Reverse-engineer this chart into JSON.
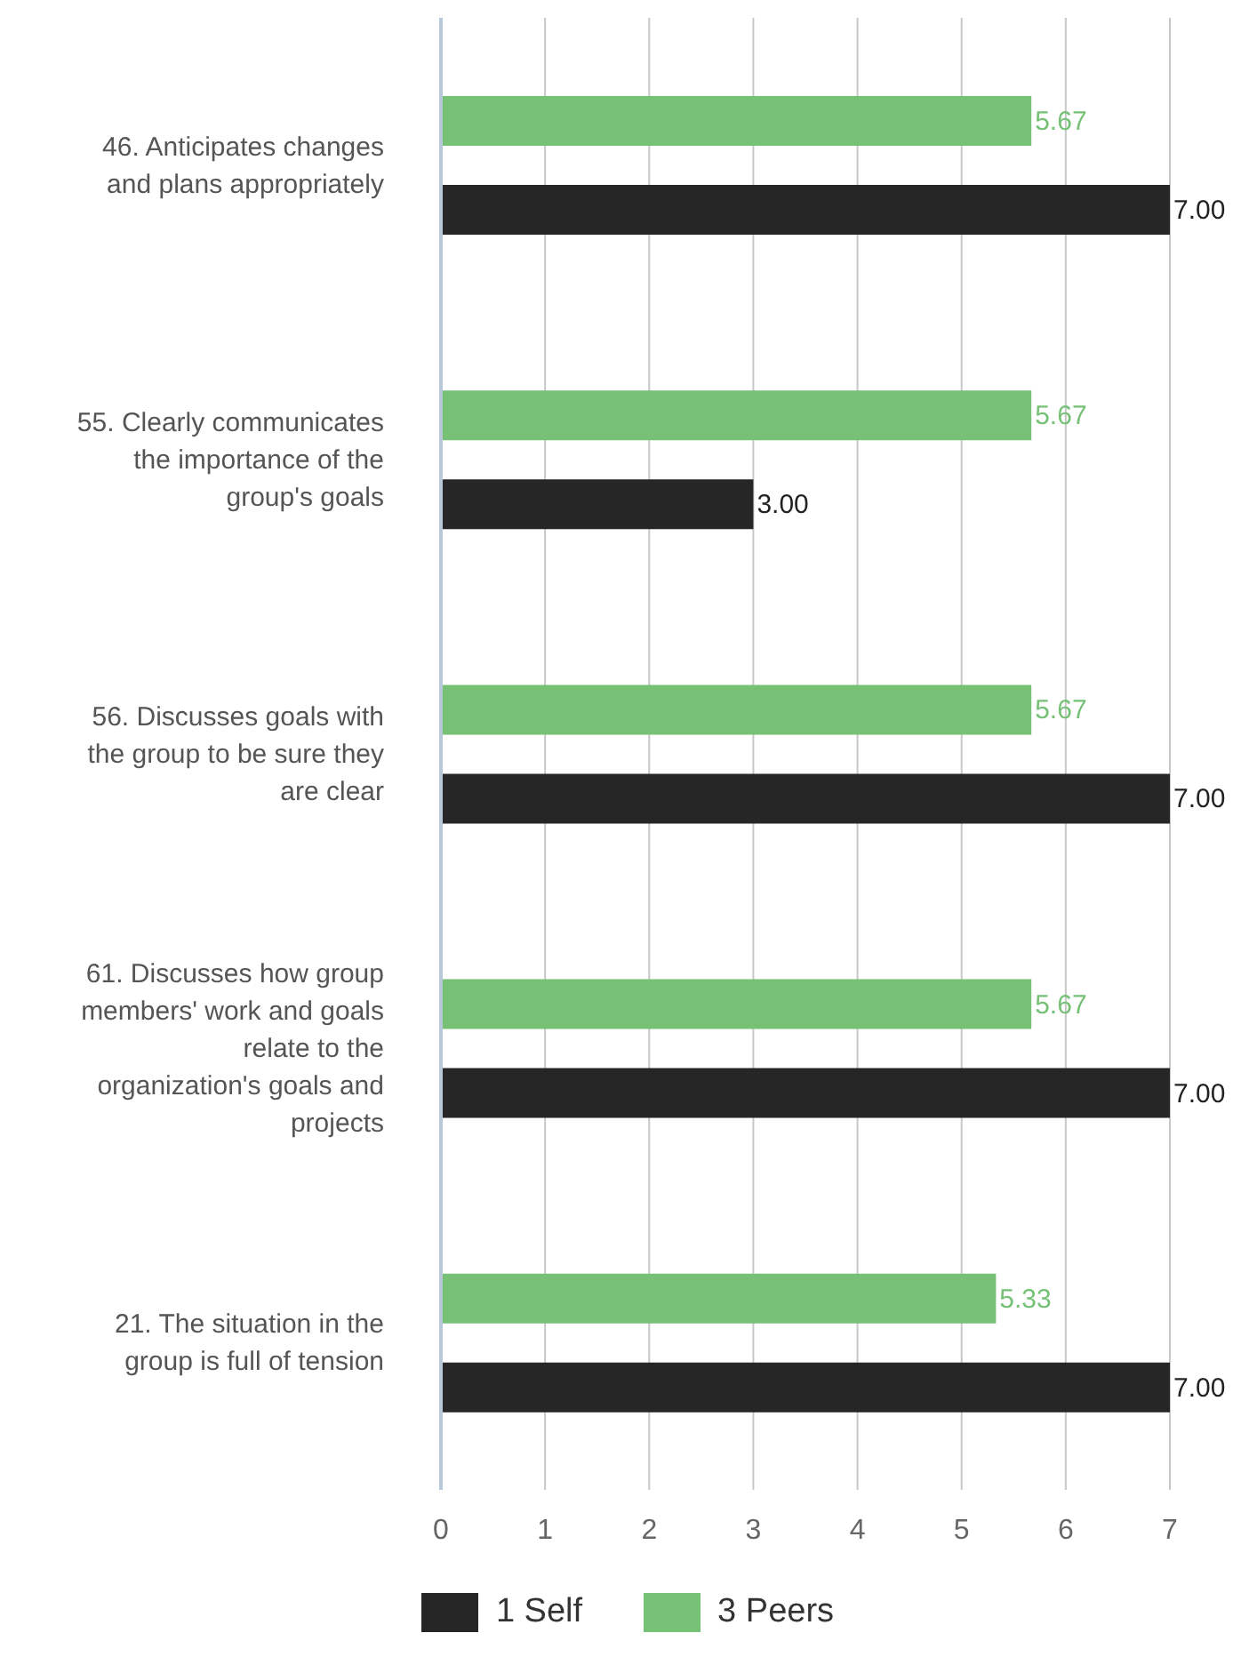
{
  "chart_data": {
    "type": "bar",
    "orientation": "horizontal",
    "categories": [
      "46. Anticipates changes and plans appropriately",
      "55. Clearly communicates the importance of the group's goals",
      "56. Discusses goals with the group to be sure they are clear",
      "61. Discusses how group members' work and goals relate to the organization's goals and projects",
      "21. The situation in the group is full of tension"
    ],
    "series": [
      {
        "name": "1 Self",
        "color": "#262626",
        "values": [
          7,
          3,
          7,
          7,
          7
        ],
        "value_labels": [
          "7.00",
          "3.00",
          "7.00",
          "7.00",
          "7.00"
        ]
      },
      {
        "name": "3 Peers",
        "color": "#77c177",
        "values": [
          5.67,
          5.67,
          5.67,
          5.67,
          5.33
        ],
        "value_labels": [
          "5.67",
          "5.67",
          "5.67",
          "5.67",
          "5.33"
        ]
      }
    ],
    "xlim": [
      0,
      7
    ],
    "xticks": [
      0,
      1,
      2,
      3,
      4,
      5,
      6,
      7
    ],
    "grid": "x",
    "legend": "bottom"
  }
}
